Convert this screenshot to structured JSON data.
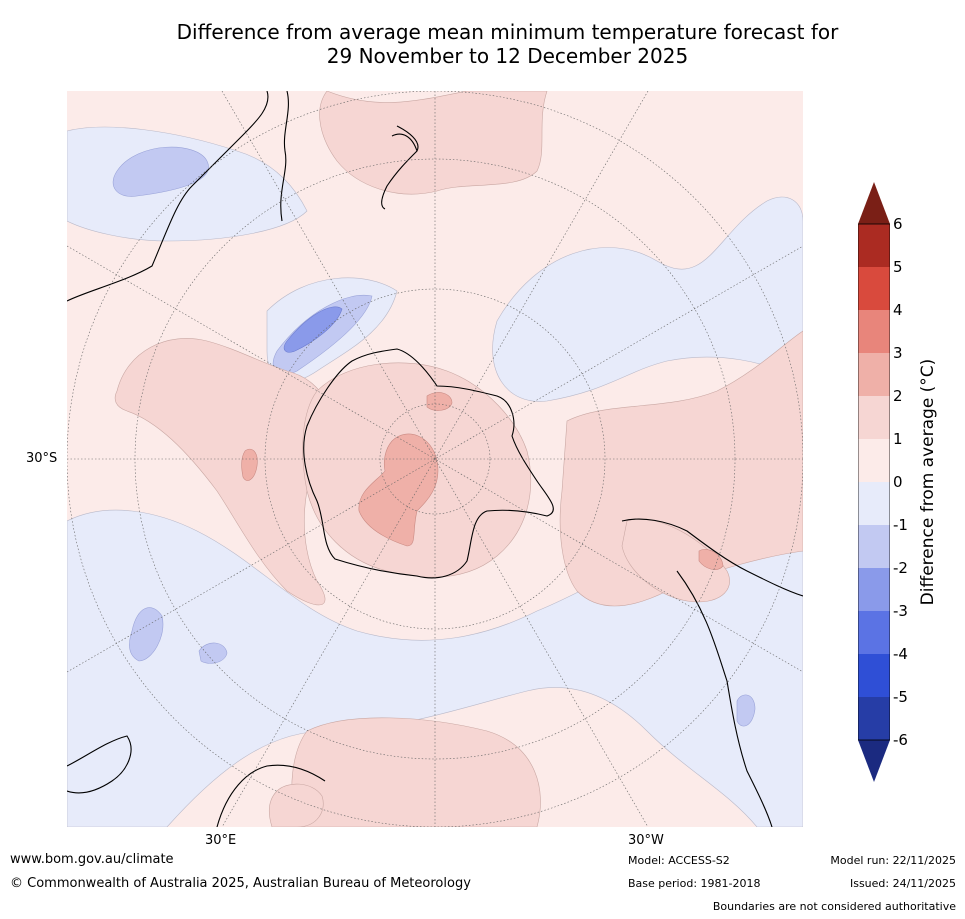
{
  "title_line1": "Difference from average mean minimum temperature forecast for",
  "title_line2": "29 November to 12 December 2025",
  "map": {
    "projection": "south-polar-stereographic",
    "variable": "mean minimum temperature anomaly",
    "lat_label": "30°S",
    "lon_labels": [
      "30°E",
      "30°W"
    ]
  },
  "legend": {
    "title": "Difference from average (°C)",
    "ticks": [
      "6",
      "5",
      "4",
      "3",
      "2",
      "1",
      "0",
      "-1",
      "-2",
      "-3",
      "-4",
      "-5",
      "-6"
    ],
    "colors_top_to_bottom": [
      "#7a1f16",
      "#ab2b22",
      "#d94a3d",
      "#e8857b",
      "#efb0a8",
      "#f6d6d3",
      "#fcebe9",
      "#e7ebfa",
      "#c2c9f2",
      "#8a9aea",
      "#5b73e4",
      "#2f4fd6",
      "#263da6",
      "#1b2a80"
    ]
  },
  "footer": {
    "website": "www.bom.gov.au/climate",
    "copyright": "© Commonwealth of Australia 2025, Australian Bureau of Meteorology",
    "model": "Model: ACCESS-S2",
    "base_period": "Base period: 1981-2018",
    "model_run": "Model run: 22/11/2025",
    "issued": "Issued: 24/11/2025",
    "disclaimer": "Boundaries are not considered authoritative"
  }
}
